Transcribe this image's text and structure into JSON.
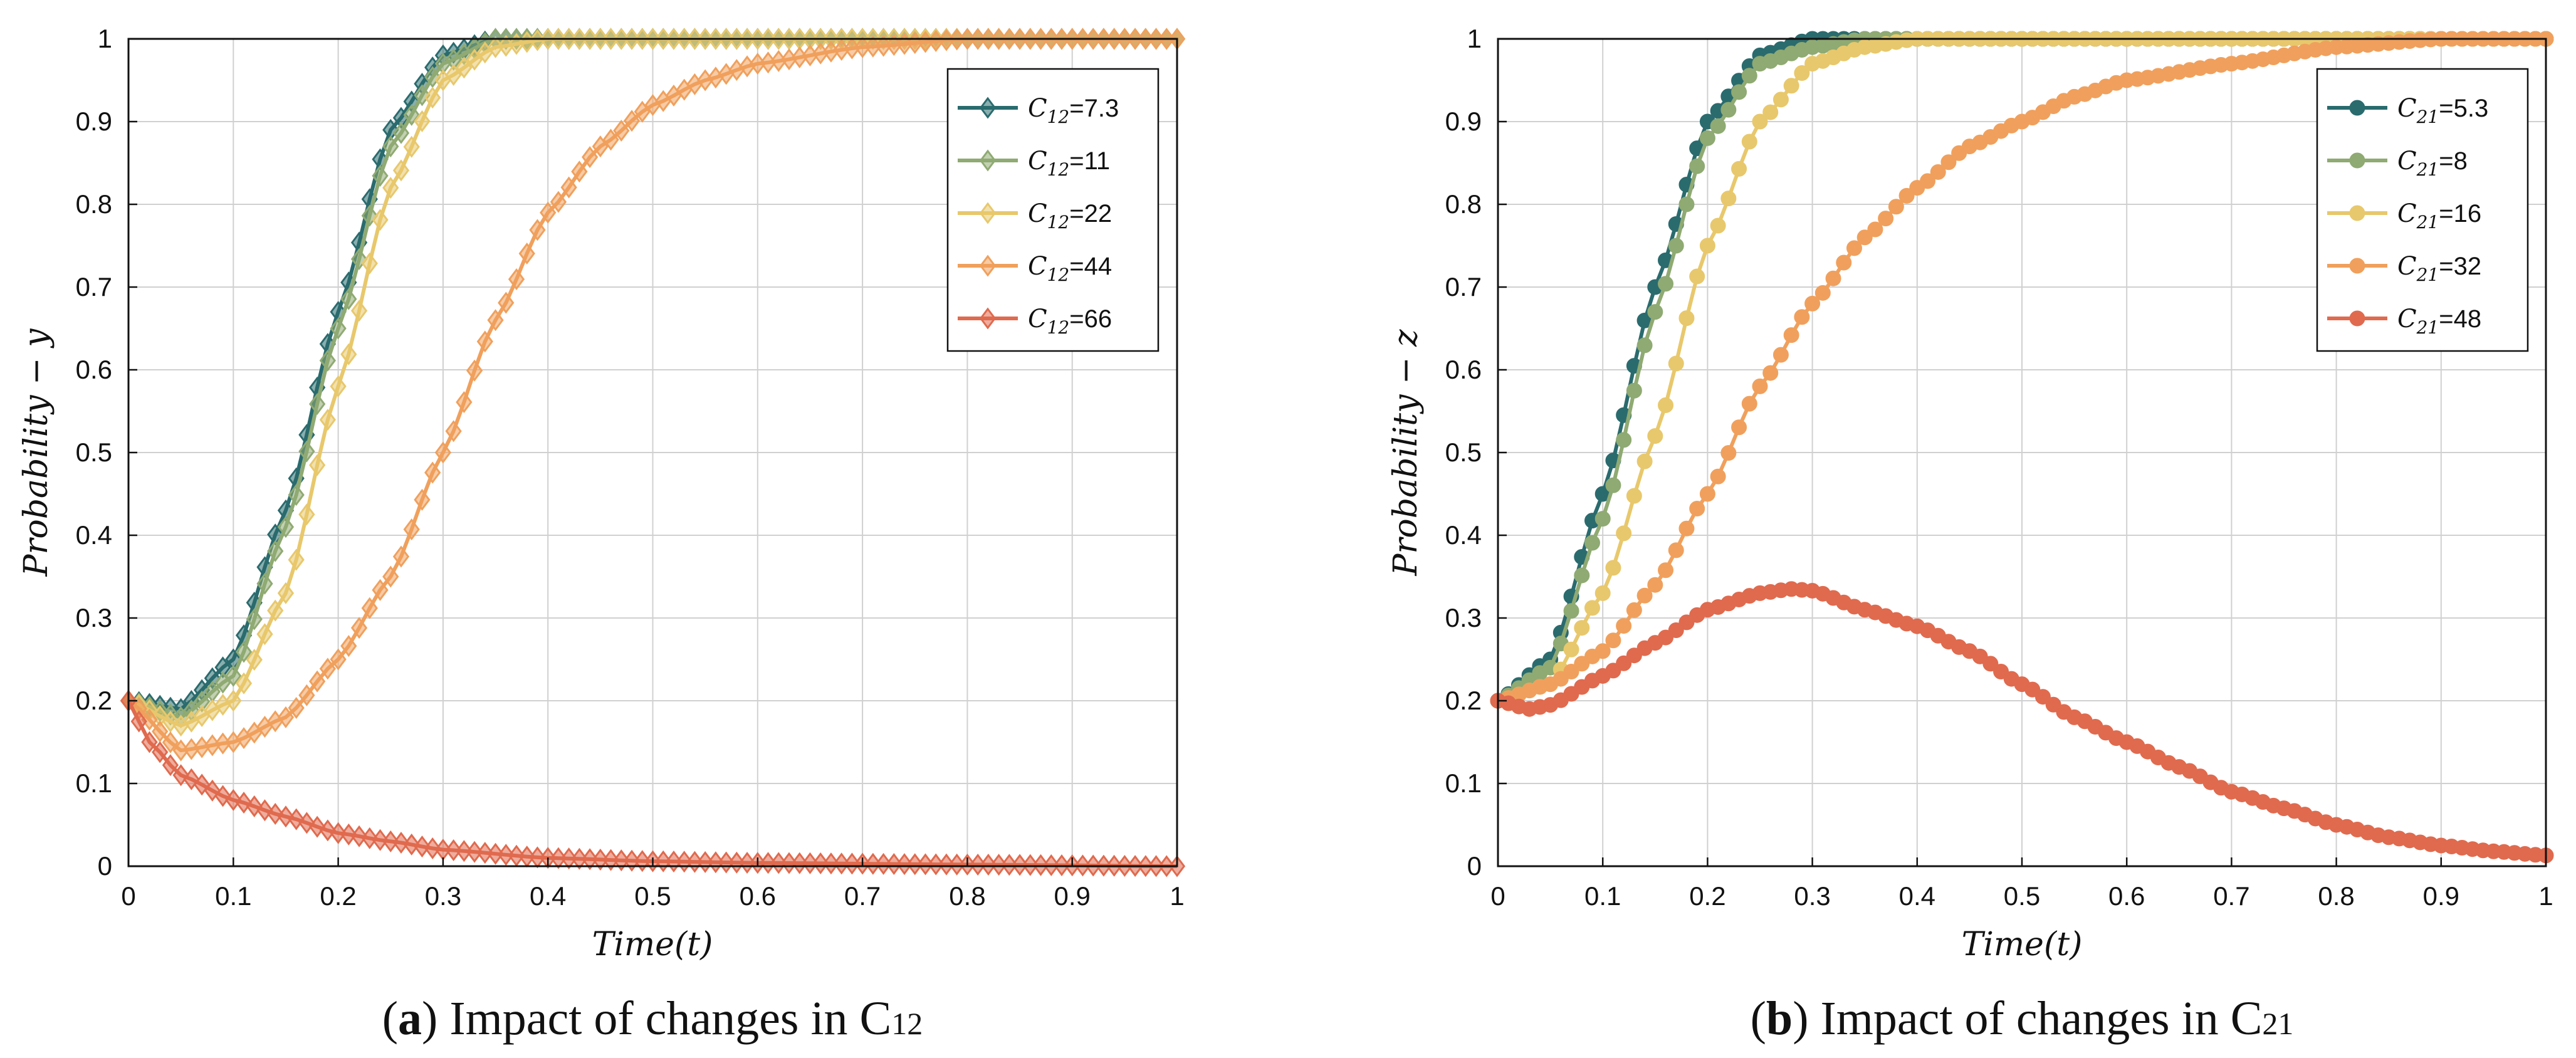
{
  "chart_data": [
    {
      "type": "line",
      "panel": "a",
      "caption_letter": "a",
      "caption_text": "Impact of changes in C",
      "caption_sub": "12",
      "xlabel": "Time(t)",
      "ylabel": "Probability − y",
      "xlim": [
        0,
        1
      ],
      "ylim": [
        0,
        1
      ],
      "x_ticks": [
        "0",
        "0.1",
        "0.2",
        "0.3",
        "0.4",
        "0.5",
        "0.6",
        "0.7",
        "0.8",
        "0.9",
        "1"
      ],
      "y_ticks": [
        "0",
        "0.1",
        "0.2",
        "0.3",
        "0.4",
        "0.5",
        "0.6",
        "0.7",
        "0.8",
        "0.9",
        "1"
      ],
      "grid": true,
      "marker": "diamond",
      "legend_position": "top-right",
      "legend_symbol": "C",
      "legend_sub": "12",
      "series": [
        {
          "name": "C12=7.3",
          "value_label": "=7.3",
          "color": "#2a6b6e",
          "x": [
            0,
            0.05,
            0.1,
            0.15,
            0.2,
            0.25,
            0.3,
            0.35,
            0.4,
            1
          ],
          "y": [
            0.2,
            0.19,
            0.25,
            0.43,
            0.67,
            0.89,
            0.98,
            1.0,
            1.0,
            1.0
          ]
        },
        {
          "name": "C12=11",
          "value_label": "=11",
          "color": "#8faa72",
          "x": [
            0,
            0.05,
            0.1,
            0.15,
            0.2,
            0.25,
            0.3,
            0.35,
            0.4,
            1
          ],
          "y": [
            0.2,
            0.18,
            0.23,
            0.41,
            0.65,
            0.87,
            0.97,
            1.0,
            1.0,
            1.0
          ]
        },
        {
          "name": "C12=22",
          "value_label": "=22",
          "color": "#e8c86c",
          "x": [
            0,
            0.05,
            0.1,
            0.15,
            0.2,
            0.25,
            0.3,
            0.35,
            0.4,
            0.5,
            1
          ],
          "y": [
            0.2,
            0.17,
            0.2,
            0.33,
            0.58,
            0.82,
            0.95,
            0.99,
            1.0,
            1.0,
            1.0
          ]
        },
        {
          "name": "C12=44",
          "value_label": "=44",
          "color": "#f0a05c",
          "x": [
            0,
            0.05,
            0.1,
            0.15,
            0.2,
            0.25,
            0.3,
            0.35,
            0.4,
            0.45,
            0.5,
            0.55,
            0.6,
            0.7,
            0.8,
            1
          ],
          "y": [
            0.2,
            0.14,
            0.15,
            0.18,
            0.25,
            0.35,
            0.5,
            0.66,
            0.79,
            0.87,
            0.92,
            0.95,
            0.97,
            0.99,
            1.0,
            1.0
          ]
        },
        {
          "name": "C12=66",
          "value_label": "=66",
          "color": "#e06a4e",
          "x": [
            0,
            0.02,
            0.05,
            0.1,
            0.15,
            0.2,
            0.25,
            0.3,
            0.4,
            0.5,
            0.6,
            0.8,
            1
          ],
          "y": [
            0.2,
            0.15,
            0.11,
            0.08,
            0.06,
            0.04,
            0.03,
            0.02,
            0.01,
            0.006,
            0.004,
            0.002,
            0.0
          ]
        }
      ]
    },
    {
      "type": "line",
      "panel": "b",
      "caption_letter": "b",
      "caption_text": "Impact of changes in C",
      "caption_sub": "21",
      "xlabel": "Time(t)",
      "ylabel": "Probability − z",
      "xlim": [
        0,
        1
      ],
      "ylim": [
        0,
        1
      ],
      "x_ticks": [
        "0",
        "0.1",
        "0.2",
        "0.3",
        "0.4",
        "0.5",
        "0.6",
        "0.7",
        "0.8",
        "0.9",
        "1"
      ],
      "y_ticks": [
        "0",
        "0.1",
        "0.2",
        "0.3",
        "0.4",
        "0.5",
        "0.6",
        "0.7",
        "0.8",
        "0.9",
        "1"
      ],
      "grid": true,
      "marker": "circle",
      "legend_position": "top-right",
      "legend_symbol": "C",
      "legend_sub": "21",
      "series": [
        {
          "name": "C21=5.3",
          "value_label": "=5.3",
          "color": "#2a6b6e",
          "x": [
            0,
            0.05,
            0.1,
            0.15,
            0.2,
            0.25,
            0.3,
            0.35,
            0.4,
            1
          ],
          "y": [
            0.2,
            0.25,
            0.45,
            0.7,
            0.9,
            0.98,
            1.0,
            1.0,
            1.0,
            1.0
          ]
        },
        {
          "name": "C21=8",
          "value_label": "=8",
          "color": "#8faa72",
          "x": [
            0,
            0.05,
            0.1,
            0.15,
            0.2,
            0.25,
            0.3,
            0.35,
            0.4,
            1
          ],
          "y": [
            0.2,
            0.24,
            0.42,
            0.67,
            0.88,
            0.97,
            0.99,
            1.0,
            1.0,
            1.0
          ]
        },
        {
          "name": "C21=16",
          "value_label": "=16",
          "color": "#e8c86c",
          "x": [
            0,
            0.05,
            0.1,
            0.15,
            0.2,
            0.25,
            0.3,
            0.35,
            0.4,
            0.5,
            1
          ],
          "y": [
            0.2,
            0.22,
            0.33,
            0.52,
            0.75,
            0.9,
            0.97,
            0.99,
            1.0,
            1.0,
            1.0
          ]
        },
        {
          "name": "C21=32",
          "value_label": "=32",
          "color": "#f0a05c",
          "x": [
            0,
            0.05,
            0.1,
            0.15,
            0.2,
            0.25,
            0.3,
            0.35,
            0.4,
            0.45,
            0.5,
            0.55,
            0.6,
            0.7,
            0.8,
            0.9,
            1
          ],
          "y": [
            0.2,
            0.22,
            0.26,
            0.34,
            0.45,
            0.58,
            0.68,
            0.76,
            0.82,
            0.87,
            0.9,
            0.93,
            0.95,
            0.97,
            0.99,
            1.0,
            1.0
          ]
        },
        {
          "name": "C21=48",
          "value_label": "=48",
          "color": "#e06a4e",
          "x": [
            0,
            0.03,
            0.05,
            0.1,
            0.15,
            0.2,
            0.25,
            0.28,
            0.3,
            0.35,
            0.4,
            0.45,
            0.5,
            0.55,
            0.6,
            0.65,
            0.7,
            0.75,
            0.8,
            0.85,
            0.9,
            0.95,
            1
          ],
          "y": [
            0.2,
            0.19,
            0.195,
            0.23,
            0.27,
            0.31,
            0.33,
            0.335,
            0.333,
            0.31,
            0.29,
            0.26,
            0.22,
            0.18,
            0.15,
            0.12,
            0.09,
            0.07,
            0.05,
            0.035,
            0.025,
            0.018,
            0.013
          ]
        }
      ]
    }
  ]
}
